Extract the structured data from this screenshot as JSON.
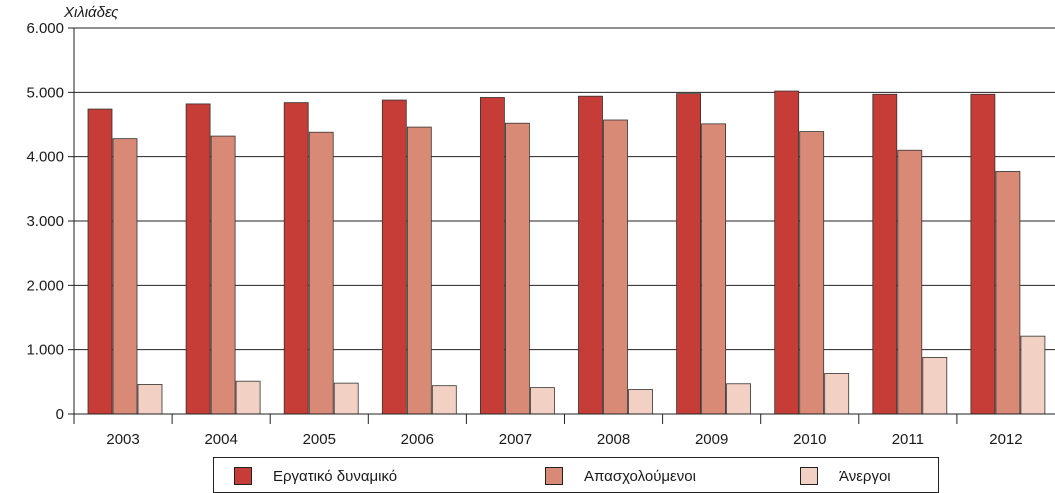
{
  "chart_data": {
    "type": "bar",
    "title": "",
    "ylabel": "Χιλιάδες",
    "xlabel": "",
    "categories": [
      "2003",
      "2004",
      "2005",
      "2006",
      "2007",
      "2008",
      "2009",
      "2010",
      "2011",
      "2012"
    ],
    "series": [
      {
        "name": "Εργατικό δυναμικό",
        "color": "#c53d36",
        "values": [
          4740,
          4820,
          4840,
          4880,
          4920,
          4940,
          4980,
          5020,
          4970,
          4970
        ]
      },
      {
        "name": "Απασχολούμενοι",
        "color": "#d98a76",
        "values": [
          4280,
          4320,
          4380,
          4460,
          4520,
          4570,
          4510,
          4390,
          4100,
          3770
        ]
      },
      {
        "name": "Άνεργοι",
        "color": "#f2d0c4",
        "values": [
          460,
          510,
          480,
          440,
          410,
          380,
          470,
          630,
          880,
          1210
        ]
      }
    ],
    "ylim": [
      0,
      6000
    ],
    "yticks": [
      0,
      1000,
      2000,
      3000,
      4000,
      5000,
      6000
    ],
    "ytick_labels": [
      "0",
      "1.000",
      "2.000",
      "3.000",
      "4.000",
      "5.000",
      "6.000"
    ],
    "grid": true,
    "legend_position": "bottom"
  }
}
